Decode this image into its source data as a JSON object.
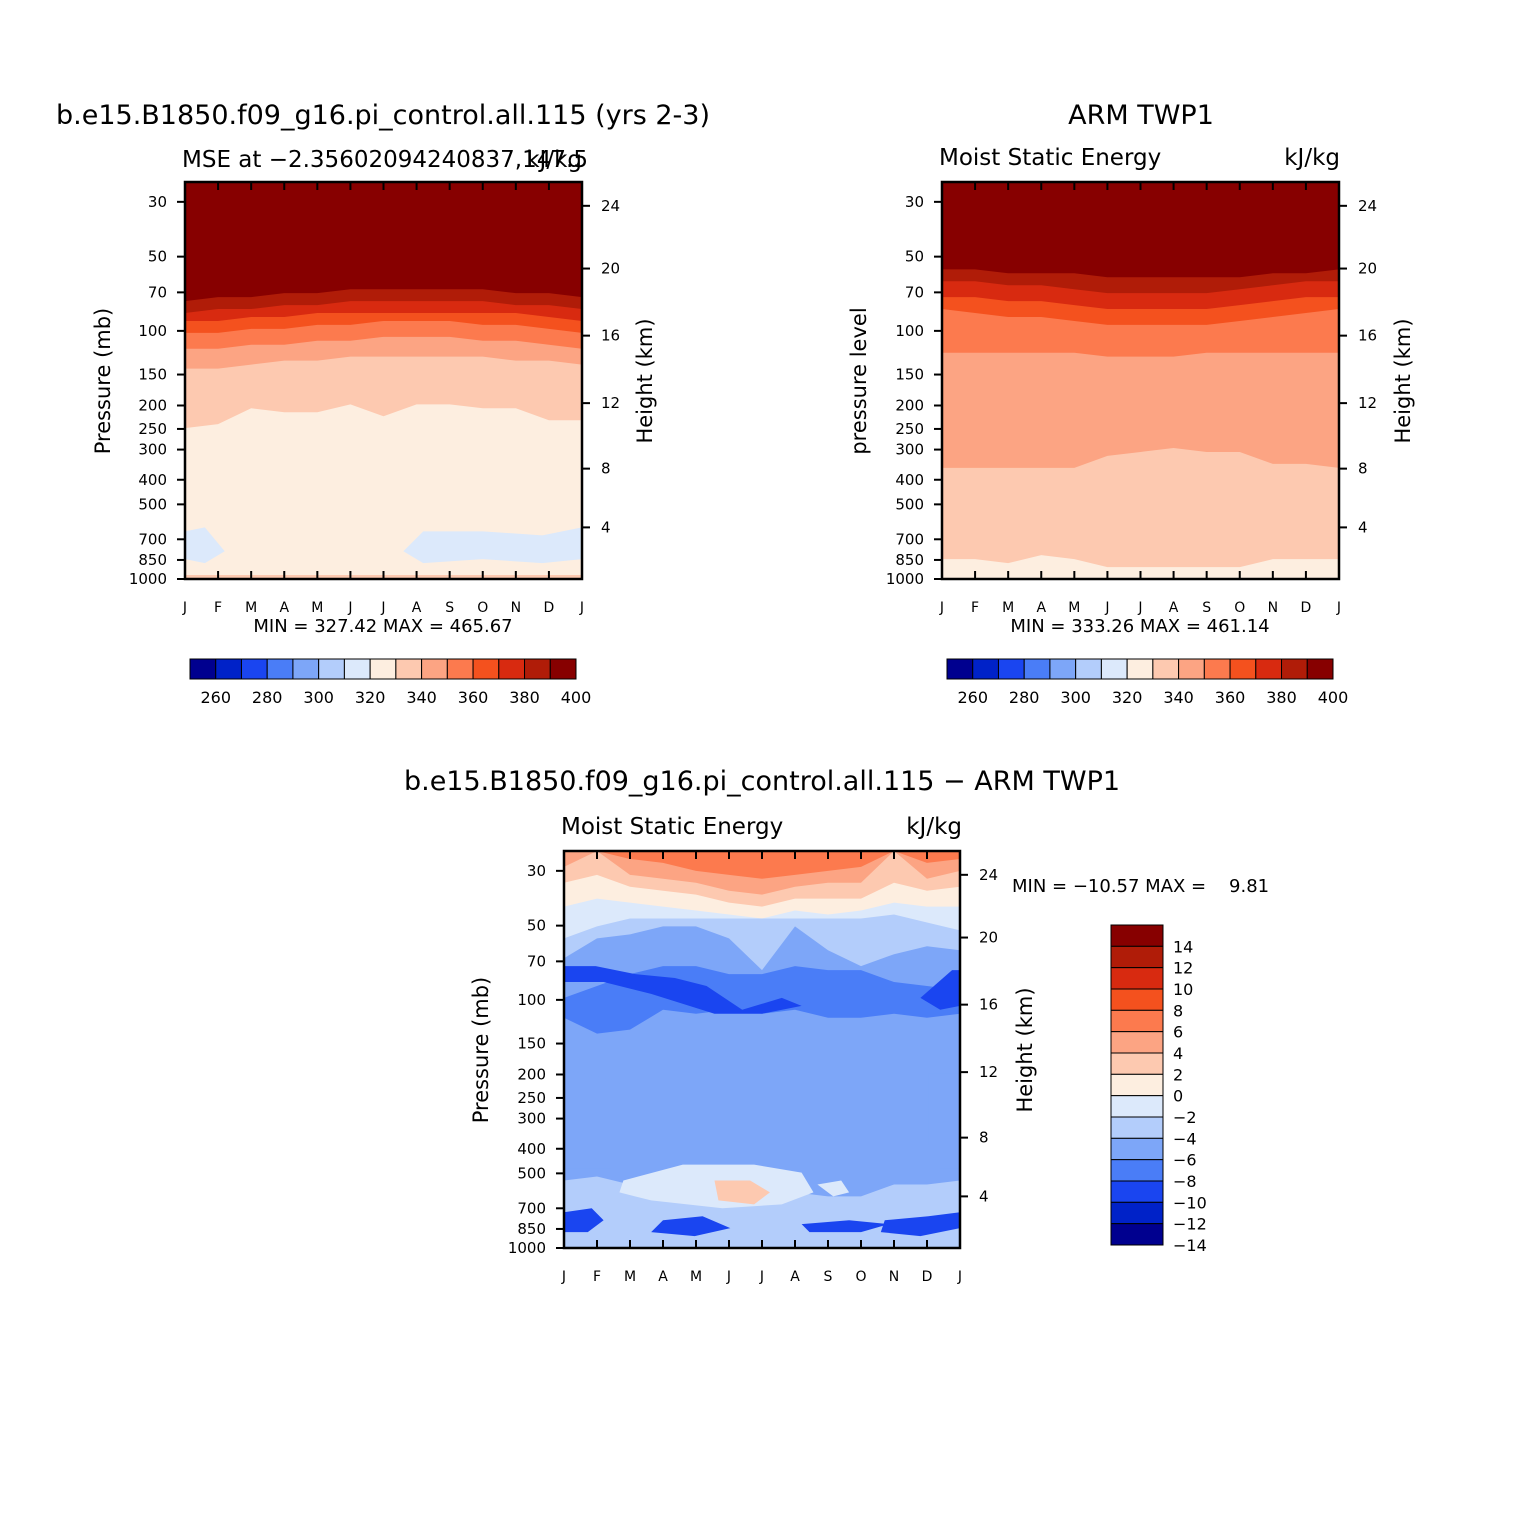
{
  "chart_data": [
    {
      "type": "heatmap",
      "title": "b.e15.B1850.f09_g16.pi_control.all.115 (yrs 2-3)",
      "left_label": "MSE at −2.35602094240837,147.5",
      "right_label": "kJ/kg",
      "ylabel": "Pressure (mb)",
      "y2label": "Height (km)",
      "x_ticks": [
        "J",
        "F",
        "M",
        "A",
        "M",
        "J",
        "J",
        "A",
        "S",
        "O",
        "N",
        "D",
        "J"
      ],
      "y_ticks": [
        "30",
        "50",
        "70",
        "100",
        "150",
        "200",
        "250",
        "300",
        "400",
        "500",
        "700",
        "850",
        "1000"
      ],
      "y2_ticks": [
        "24",
        "20",
        "16",
        "12",
        "8",
        "4"
      ],
      "stats": "MIN = 327.42 MAX = 465.67",
      "min": 327.42,
      "max": 465.67,
      "colorbar_labels": [
        "260",
        "280",
        "300",
        "320",
        "340",
        "360",
        "380",
        "400"
      ],
      "colorbar_colors": [
        "#00008f",
        "#0022c8",
        "#1a45f0",
        "#4a7df7",
        "#7da6f8",
        "#b3cdfb",
        "#dce9fb",
        "#fdeee0",
        "#fdc9b0",
        "#fca483",
        "#fc7a4e",
        "#f4511e",
        "#d82a10",
        "#b01c08",
        "#870000"
      ],
      "levels": [
        [
          0.3,
          0.29,
          0.29,
          0.28,
          0.28,
          0.27,
          0.27,
          0.27,
          0.27,
          0.27,
          0.28,
          0.28,
          0.29
        ],
        [
          0.33,
          0.32,
          0.32,
          0.31,
          0.31,
          0.3,
          0.3,
          0.3,
          0.3,
          0.3,
          0.31,
          0.31,
          0.32
        ],
        [
          0.35,
          0.35,
          0.34,
          0.34,
          0.33,
          0.33,
          0.33,
          0.33,
          0.33,
          0.33,
          0.33,
          0.34,
          0.35
        ],
        [
          0.38,
          0.38,
          0.37,
          0.37,
          0.36,
          0.36,
          0.35,
          0.35,
          0.35,
          0.36,
          0.36,
          0.37,
          0.38
        ],
        [
          0.42,
          0.42,
          0.41,
          0.41,
          0.4,
          0.4,
          0.39,
          0.39,
          0.39,
          0.4,
          0.4,
          0.41,
          0.42
        ],
        [
          0.47,
          0.47,
          0.46,
          0.45,
          0.45,
          0.44,
          0.44,
          0.44,
          0.44,
          0.44,
          0.45,
          0.45,
          0.46
        ],
        [
          0.62,
          0.61,
          0.57,
          0.58,
          0.58,
          0.56,
          0.59,
          0.56,
          0.56,
          0.57,
          0.57,
          0.6,
          0.6
        ],
        [
          0.99,
          0.99,
          0.99,
          0.99,
          0.99,
          0.99,
          0.99,
          0.99,
          0.99,
          0.99,
          0.99,
          0.99,
          0.99
        ]
      ],
      "level_colors": [
        "#870000",
        "#b01c08",
        "#d82a10",
        "#f4511e",
        "#fc7a4e",
        "#fca483",
        "#fdc9b0",
        "#fdeee0",
        "#fdc9b0"
      ],
      "blobs": [
        [
          [
            0,
            0.88
          ],
          [
            0.05,
            0.87
          ],
          [
            0.1,
            0.93
          ],
          [
            0.05,
            0.96
          ],
          [
            0,
            0.95
          ]
        ],
        [
          [
            0.55,
            0.93
          ],
          [
            0.6,
            0.88
          ],
          [
            0.75,
            0.88
          ],
          [
            0.9,
            0.89
          ],
          [
            1,
            0.87
          ],
          [
            1,
            0.95
          ],
          [
            0.9,
            0.96
          ],
          [
            0.75,
            0.95
          ],
          [
            0.6,
            0.96
          ]
        ]
      ],
      "blob_colors": [
        "#dce9fb",
        "#dce9fb"
      ]
    },
    {
      "type": "heatmap",
      "title": "ARM TWP1",
      "left_label": "Moist Static Energy",
      "right_label": "kJ/kg",
      "ylabel": "pressure level",
      "y2label": "Height (km)",
      "x_ticks": [
        "J",
        "F",
        "M",
        "A",
        "M",
        "J",
        "J",
        "A",
        "S",
        "O",
        "N",
        "D",
        "J"
      ],
      "y_ticks": [
        "30",
        "50",
        "70",
        "100",
        "150",
        "200",
        "250",
        "300",
        "400",
        "500",
        "700",
        "850",
        "1000"
      ],
      "y2_ticks": [
        "24",
        "20",
        "16",
        "12",
        "8",
        "4"
      ],
      "stats": "MIN = 333.26 MAX = 461.14",
      "min": 333.26,
      "max": 461.14,
      "colorbar_labels": [
        "260",
        "280",
        "300",
        "320",
        "340",
        "360",
        "380",
        "400"
      ],
      "colorbar_colors": [
        "#00008f",
        "#0022c8",
        "#1a45f0",
        "#4a7df7",
        "#7da6f8",
        "#b3cdfb",
        "#dce9fb",
        "#fdeee0",
        "#fdc9b0",
        "#fca483",
        "#fc7a4e",
        "#f4511e",
        "#d82a10",
        "#b01c08",
        "#870000"
      ],
      "levels": [
        [
          0.22,
          0.22,
          0.23,
          0.23,
          0.23,
          0.24,
          0.24,
          0.24,
          0.24,
          0.24,
          0.23,
          0.23,
          0.22
        ],
        [
          0.25,
          0.25,
          0.26,
          0.26,
          0.27,
          0.28,
          0.28,
          0.28,
          0.28,
          0.27,
          0.26,
          0.25,
          0.25
        ],
        [
          0.29,
          0.29,
          0.3,
          0.3,
          0.31,
          0.32,
          0.32,
          0.32,
          0.32,
          0.31,
          0.3,
          0.29,
          0.29
        ],
        [
          0.32,
          0.33,
          0.34,
          0.34,
          0.35,
          0.36,
          0.36,
          0.36,
          0.36,
          0.35,
          0.34,
          0.33,
          0.32
        ],
        [
          0.43,
          0.43,
          0.43,
          0.43,
          0.43,
          0.44,
          0.44,
          0.44,
          0.43,
          0.43,
          0.43,
          0.43,
          0.43
        ],
        [
          0.72,
          0.72,
          0.72,
          0.72,
          0.72,
          0.69,
          0.68,
          0.67,
          0.68,
          0.68,
          0.71,
          0.71,
          0.72
        ],
        [
          0.95,
          0.95,
          0.96,
          0.94,
          0.95,
          0.97,
          0.97,
          0.97,
          0.97,
          0.97,
          0.95,
          0.95,
          0.95
        ],
        [
          1,
          1,
          1,
          1,
          1,
          1,
          1,
          1,
          1,
          1,
          1,
          1,
          1
        ]
      ],
      "level_colors": [
        "#870000",
        "#b01c08",
        "#d82a10",
        "#f4511e",
        "#fc7a4e",
        "#fca483",
        "#fdc9b0",
        "#fdeee0",
        "#fdc9b0"
      ],
      "blobs": [],
      "blob_colors": []
    },
    {
      "type": "heatmap",
      "title": "b.e15.B1850.f09_g16.pi_control.all.115 − ARM TWP1",
      "left_label": "Moist Static Energy",
      "right_label": "kJ/kg",
      "ylabel": "Pressure (mb)",
      "y2label": "Height (km)",
      "x_ticks": [
        "J",
        "F",
        "M",
        "A",
        "M",
        "J",
        "J",
        "A",
        "S",
        "O",
        "N",
        "D",
        "J"
      ],
      "y_ticks": [
        "30",
        "50",
        "70",
        "100",
        "150",
        "200",
        "250",
        "300",
        "400",
        "500",
        "700",
        "850",
        "1000"
      ],
      "y2_ticks": [
        "24",
        "20",
        "16",
        "12",
        "8",
        "4"
      ],
      "stats": "MIN = −10.57 MAX =    9.81",
      "min": -10.57,
      "max": 9.81,
      "colorbar_labels": [
        "14",
        "12",
        "10",
        "8",
        "6",
        "4",
        "2",
        "0",
        "−2",
        "−4",
        "−6",
        "−8",
        "−10",
        "−12",
        "−14"
      ],
      "colorbar_colors": [
        "#870000",
        "#b01c08",
        "#d82a10",
        "#f4511e",
        "#fc7a4e",
        "#fca483",
        "#fdc9b0",
        "#fdeee0",
        "#dce9fb",
        "#b3cdfb",
        "#7da6f8",
        "#4a7df7",
        "#1a45f0",
        "#0022c8",
        "#00008f"
      ],
      "levels": [
        [
          0.0,
          0.0,
          0.02,
          0.03,
          0.05,
          0.06,
          0.07,
          0.06,
          0.05,
          0.04,
          0.0,
          0.03,
          0.02
        ],
        [
          0.04,
          0.0,
          0.06,
          0.07,
          0.08,
          0.1,
          0.11,
          0.09,
          0.08,
          0.08,
          0.0,
          0.07,
          0.05
        ],
        [
          0.08,
          0.06,
          0.09,
          0.1,
          0.11,
          0.13,
          0.14,
          0.12,
          0.12,
          0.12,
          0.08,
          0.1,
          0.09
        ],
        [
          0.14,
          0.12,
          0.13,
          0.14,
          0.15,
          0.16,
          0.17,
          0.15,
          0.16,
          0.15,
          0.13,
          0.14,
          0.14
        ],
        [
          0.22,
          0.19,
          0.17,
          0.17,
          0.17,
          0.17,
          0.17,
          0.17,
          0.17,
          0.17,
          0.16,
          0.18,
          0.2
        ],
        [
          0.27,
          0.22,
          0.21,
          0.19,
          0.19,
          0.22,
          0.3,
          0.19,
          0.25,
          0.29,
          0.26,
          0.24,
          0.25
        ],
        [
          0.37,
          0.34,
          0.31,
          0.29,
          0.29,
          0.31,
          0.31,
          0.29,
          0.3,
          0.3,
          0.33,
          0.34,
          0.35
        ],
        [
          0.42,
          0.46,
          0.45,
          0.4,
          0.41,
          0.4,
          0.41,
          0.4,
          0.42,
          0.42,
          0.41,
          0.42,
          0.41
        ],
        [
          0.83,
          0.82,
          0.84,
          0.84,
          0.86,
          0.87,
          0.87,
          0.86,
          0.87,
          0.87,
          0.84,
          0.84,
          0.83
        ],
        [
          1,
          1,
          1,
          1,
          1,
          1,
          1,
          1,
          1,
          1,
          1,
          1,
          1
        ]
      ],
      "level_colors": [
        "#fc7a4e",
        "#fca483",
        "#fdc9b0",
        "#fdeee0",
        "#dce9fb",
        "#b3cdfb",
        "#7da6f8",
        "#4a7df7",
        "#7da6f8",
        "#b3cdfb",
        "#4a7df7"
      ],
      "blobs": [
        [
          [
            0,
            0.29
          ],
          [
            0.08,
            0.29
          ],
          [
            0.18,
            0.31
          ],
          [
            0.28,
            0.32
          ],
          [
            0.36,
            0.34
          ],
          [
            0.45,
            0.4
          ],
          [
            0.55,
            0.37
          ],
          [
            0.6,
            0.39
          ],
          [
            0.5,
            0.41
          ],
          [
            0.38,
            0.41
          ],
          [
            0.22,
            0.36
          ],
          [
            0.1,
            0.33
          ],
          [
            0,
            0.33
          ]
        ],
        [
          [
            0.9,
            0.37
          ],
          [
            0.98,
            0.3
          ],
          [
            1,
            0.3
          ],
          [
            1,
            0.39
          ],
          [
            0.95,
            0.4
          ]
        ],
        [
          [
            0.0,
            0.55
          ],
          [
            0.14,
            0.58
          ],
          [
            0.17,
            0.74
          ],
          [
            0.12,
            0.8
          ],
          [
            0.0,
            0.8
          ]
        ],
        [
          [
            0.92,
            0.56
          ],
          [
            1,
            0.56
          ],
          [
            1,
            0.8
          ],
          [
            0.95,
            0.8
          ],
          [
            0.92,
            0.74
          ]
        ],
        [
          [
            0.15,
            0.83
          ],
          [
            0.3,
            0.79
          ],
          [
            0.48,
            0.79
          ],
          [
            0.6,
            0.81
          ],
          [
            0.63,
            0.86
          ],
          [
            0.55,
            0.89
          ],
          [
            0.4,
            0.9
          ],
          [
            0.22,
            0.88
          ],
          [
            0.14,
            0.86
          ]
        ],
        [
          [
            0.38,
            0.83
          ],
          [
            0.47,
            0.83
          ],
          [
            0.52,
            0.86
          ],
          [
            0.48,
            0.89
          ],
          [
            0.39,
            0.88
          ]
        ],
        [
          [
            0.64,
            0.84
          ],
          [
            0.7,
            0.83
          ],
          [
            0.72,
            0.86
          ],
          [
            0.68,
            0.87
          ]
        ],
        [
          [
            0.0,
            0.91
          ],
          [
            0.07,
            0.9
          ],
          [
            0.1,
            0.93
          ],
          [
            0.06,
            0.96
          ],
          [
            0.0,
            0.96
          ]
        ],
        [
          [
            0.25,
            0.93
          ],
          [
            0.35,
            0.92
          ],
          [
            0.42,
            0.95
          ],
          [
            0.33,
            0.97
          ],
          [
            0.22,
            0.96
          ]
        ],
        [
          [
            0.6,
            0.94
          ],
          [
            0.72,
            0.93
          ],
          [
            0.82,
            0.94
          ],
          [
            0.75,
            0.96
          ],
          [
            0.62,
            0.96
          ]
        ],
        [
          [
            0.81,
            0.93
          ],
          [
            0.92,
            0.92
          ],
          [
            1,
            0.91
          ],
          [
            1,
            0.95
          ],
          [
            0.9,
            0.97
          ],
          [
            0.8,
            0.96
          ]
        ]
      ],
      "blob_colors": [
        "#1a45f0",
        "#1a45f0",
        "#7da6f8",
        "#7da6f8",
        "#dce9fb",
        "#fdc9b0",
        "#dce9fb",
        "#1a45f0",
        "#1a45f0",
        "#1a45f0",
        "#1a45f0"
      ]
    }
  ]
}
